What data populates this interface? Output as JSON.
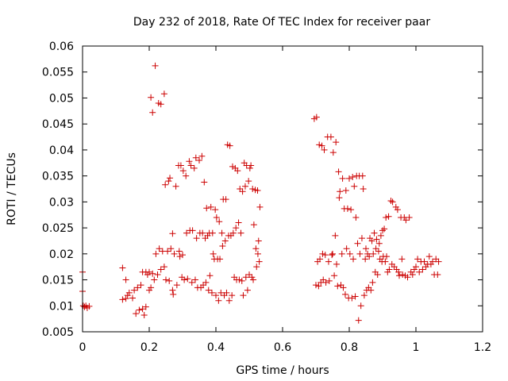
{
  "chart_data": {
    "type": "scatter",
    "title": "Day 232 of 2018, Rate Of TEC Index for receiver paar",
    "xlabel": "GPS time / hours",
    "ylabel": "ROTI / TECUs",
    "xlim": [
      0,
      1.2
    ],
    "ylim": [
      0.005,
      0.06
    ],
    "xticks": [
      "0",
      "0.2",
      "0.4",
      "0.6",
      "0.8",
      "1",
      "1.2"
    ],
    "yticks": [
      "0.005",
      "0.01",
      "0.015",
      "0.02",
      "0.025",
      "0.03",
      "0.035",
      "0.04",
      "0.045",
      "0.05",
      "0.055",
      "0.06"
    ],
    "grid": false,
    "marker": "+",
    "marker_color": "#cc0000",
    "series": [
      {
        "name": "ROTI",
        "points": [
          [
            0.0,
            0.0165
          ],
          [
            0.0,
            0.0128
          ],
          [
            0.002,
            0.01
          ],
          [
            0.006,
            0.0098
          ],
          [
            0.01,
            0.01
          ],
          [
            0.014,
            0.0096
          ],
          [
            0.02,
            0.0099
          ],
          [
            0.12,
            0.0173
          ],
          [
            0.12,
            0.0112
          ],
          [
            0.13,
            0.015
          ],
          [
            0.13,
            0.0114
          ],
          [
            0.135,
            0.012
          ],
          [
            0.14,
            0.0125
          ],
          [
            0.15,
            0.0115
          ],
          [
            0.155,
            0.013
          ],
          [
            0.16,
            0.0085
          ],
          [
            0.165,
            0.0135
          ],
          [
            0.17,
            0.0092
          ],
          [
            0.175,
            0.014
          ],
          [
            0.18,
            0.0094
          ],
          [
            0.18,
            0.0165
          ],
          [
            0.185,
            0.0082
          ],
          [
            0.19,
            0.0165
          ],
          [
            0.19,
            0.0098
          ],
          [
            0.195,
            0.016
          ],
          [
            0.2,
            0.013
          ],
          [
            0.2,
            0.0165
          ],
          [
            0.205,
            0.0135
          ],
          [
            0.205,
            0.0501
          ],
          [
            0.21,
            0.0472
          ],
          [
            0.21,
            0.0162
          ],
          [
            0.215,
            0.015
          ],
          [
            0.218,
            0.0562
          ],
          [
            0.22,
            0.02
          ],
          [
            0.225,
            0.016
          ],
          [
            0.228,
            0.049
          ],
          [
            0.23,
            0.021
          ],
          [
            0.235,
            0.0488
          ],
          [
            0.235,
            0.017
          ],
          [
            0.24,
            0.0205
          ],
          [
            0.245,
            0.0508
          ],
          [
            0.245,
            0.0175
          ],
          [
            0.248,
            0.0333
          ],
          [
            0.25,
            0.015
          ],
          [
            0.255,
            0.0205
          ],
          [
            0.258,
            0.034
          ],
          [
            0.26,
            0.0148
          ],
          [
            0.262,
            0.0346
          ],
          [
            0.265,
            0.021
          ],
          [
            0.27,
            0.013
          ],
          [
            0.27,
            0.0239
          ],
          [
            0.272,
            0.0122
          ],
          [
            0.275,
            0.02
          ],
          [
            0.28,
            0.033
          ],
          [
            0.283,
            0.014
          ],
          [
            0.288,
            0.037
          ],
          [
            0.29,
            0.0205
          ],
          [
            0.292,
            0.0195
          ],
          [
            0.295,
            0.037
          ],
          [
            0.298,
            0.0155
          ],
          [
            0.3,
            0.0198
          ],
          [
            0.302,
            0.036
          ],
          [
            0.305,
            0.015
          ],
          [
            0.31,
            0.035
          ],
          [
            0.312,
            0.024
          ],
          [
            0.315,
            0.0152
          ],
          [
            0.32,
            0.0378
          ],
          [
            0.322,
            0.0245
          ],
          [
            0.325,
            0.037
          ],
          [
            0.328,
            0.0145
          ],
          [
            0.33,
            0.0245
          ],
          [
            0.335,
            0.0365
          ],
          [
            0.338,
            0.015
          ],
          [
            0.34,
            0.0385
          ],
          [
            0.342,
            0.023
          ],
          [
            0.345,
            0.0135
          ],
          [
            0.35,
            0.038
          ],
          [
            0.352,
            0.024
          ],
          [
            0.355,
            0.0135
          ],
          [
            0.358,
            0.0388
          ],
          [
            0.36,
            0.024
          ],
          [
            0.362,
            0.014
          ],
          [
            0.365,
            0.0338
          ],
          [
            0.368,
            0.023
          ],
          [
            0.37,
            0.0145
          ],
          [
            0.372,
            0.0288
          ],
          [
            0.375,
            0.0235
          ],
          [
            0.378,
            0.013
          ],
          [
            0.38,
            0.024
          ],
          [
            0.382,
            0.0158
          ],
          [
            0.385,
            0.029
          ],
          [
            0.388,
            0.0125
          ],
          [
            0.39,
            0.024
          ],
          [
            0.392,
            0.02
          ],
          [
            0.395,
            0.019
          ],
          [
            0.398,
            0.0285
          ],
          [
            0.4,
            0.012
          ],
          [
            0.402,
            0.027
          ],
          [
            0.405,
            0.019
          ],
          [
            0.408,
            0.011
          ],
          [
            0.41,
            0.0262
          ],
          [
            0.412,
            0.019
          ],
          [
            0.415,
            0.0125
          ],
          [
            0.418,
            0.024
          ],
          [
            0.42,
            0.0215
          ],
          [
            0.422,
            0.0305
          ],
          [
            0.425,
            0.012
          ],
          [
            0.428,
            0.0225
          ],
          [
            0.43,
            0.0305
          ],
          [
            0.432,
            0.0125
          ],
          [
            0.435,
            0.041
          ],
          [
            0.438,
            0.0235
          ],
          [
            0.44,
            0.011
          ],
          [
            0.442,
            0.0408
          ],
          [
            0.445,
            0.0235
          ],
          [
            0.448,
            0.012
          ],
          [
            0.45,
            0.0368
          ],
          [
            0.452,
            0.024
          ],
          [
            0.455,
            0.0155
          ],
          [
            0.458,
            0.0365
          ],
          [
            0.46,
            0.025
          ],
          [
            0.462,
            0.015
          ],
          [
            0.465,
            0.036
          ],
          [
            0.468,
            0.026
          ],
          [
            0.47,
            0.015
          ],
          [
            0.472,
            0.0325
          ],
          [
            0.475,
            0.024
          ],
          [
            0.478,
            0.0148
          ],
          [
            0.48,
            0.032
          ],
          [
            0.482,
            0.012
          ],
          [
            0.485,
            0.0375
          ],
          [
            0.488,
            0.033
          ],
          [
            0.49,
            0.0155
          ],
          [
            0.492,
            0.037
          ],
          [
            0.495,
            0.013
          ],
          [
            0.498,
            0.034
          ],
          [
            0.5,
            0.016
          ],
          [
            0.502,
            0.0365
          ],
          [
            0.505,
            0.037
          ],
          [
            0.508,
            0.0155
          ],
          [
            0.51,
            0.0325
          ],
          [
            0.512,
            0.015
          ],
          [
            0.514,
            0.0256
          ],
          [
            0.518,
            0.0323
          ],
          [
            0.52,
            0.021
          ],
          [
            0.522,
            0.0175
          ],
          [
            0.525,
            0.0322
          ],
          [
            0.526,
            0.02
          ],
          [
            0.528,
            0.0225
          ],
          [
            0.53,
            0.0185
          ],
          [
            0.532,
            0.029
          ],
          [
            0.695,
            0.046
          ],
          [
            0.7,
            0.014
          ],
          [
            0.702,
            0.0463
          ],
          [
            0.705,
            0.0185
          ],
          [
            0.708,
            0.0138
          ],
          [
            0.71,
            0.041
          ],
          [
            0.712,
            0.019
          ],
          [
            0.715,
            0.0145
          ],
          [
            0.718,
            0.0408
          ],
          [
            0.72,
            0.02
          ],
          [
            0.722,
            0.015
          ],
          [
            0.725,
            0.04
          ],
          [
            0.728,
            0.0198
          ],
          [
            0.73,
            0.0145
          ],
          [
            0.735,
            0.0425
          ],
          [
            0.738,
            0.0185
          ],
          [
            0.74,
            0.0148
          ],
          [
            0.745,
            0.0425
          ],
          [
            0.748,
            0.0198
          ],
          [
            0.75,
            0.02
          ],
          [
            0.752,
            0.0395
          ],
          [
            0.755,
            0.0158
          ],
          [
            0.758,
            0.0235
          ],
          [
            0.76,
            0.0415
          ],
          [
            0.762,
            0.018
          ],
          [
            0.765,
            0.0138
          ],
          [
            0.768,
            0.0358
          ],
          [
            0.77,
            0.0308
          ],
          [
            0.772,
            0.032
          ],
          [
            0.775,
            0.014
          ],
          [
            0.778,
            0.02
          ],
          [
            0.78,
            0.0345
          ],
          [
            0.782,
            0.0135
          ],
          [
            0.785,
            0.0287
          ],
          [
            0.788,
            0.0122
          ],
          [
            0.79,
            0.0322
          ],
          [
            0.792,
            0.021
          ],
          [
            0.795,
            0.0287
          ],
          [
            0.798,
            0.0115
          ],
          [
            0.8,
            0.0345
          ],
          [
            0.802,
            0.02
          ],
          [
            0.805,
            0.0285
          ],
          [
            0.808,
            0.0115
          ],
          [
            0.81,
            0.0348
          ],
          [
            0.812,
            0.019
          ],
          [
            0.815,
            0.033
          ],
          [
            0.818,
            0.0118
          ],
          [
            0.82,
            0.027
          ],
          [
            0.822,
            0.035
          ],
          [
            0.825,
            0.022
          ],
          [
            0.828,
            0.0072
          ],
          [
            0.83,
            0.035
          ],
          [
            0.832,
            0.02
          ],
          [
            0.835,
            0.01
          ],
          [
            0.838,
            0.023
          ],
          [
            0.84,
            0.035
          ],
          [
            0.842,
            0.0325
          ],
          [
            0.845,
            0.012
          ],
          [
            0.848,
            0.019
          ],
          [
            0.85,
            0.021
          ],
          [
            0.852,
            0.013
          ],
          [
            0.855,
            0.02
          ],
          [
            0.858,
            0.0135
          ],
          [
            0.86,
            0.0195
          ],
          [
            0.862,
            0.023
          ],
          [
            0.865,
            0.013
          ],
          [
            0.868,
            0.0225
          ],
          [
            0.87,
            0.0145
          ],
          [
            0.872,
            0.02
          ],
          [
            0.875,
            0.024
          ],
          [
            0.878,
            0.0165
          ],
          [
            0.88,
            0.021
          ],
          [
            0.882,
            0.0228
          ],
          [
            0.885,
            0.016
          ],
          [
            0.888,
            0.0205
          ],
          [
            0.89,
            0.022
          ],
          [
            0.892,
            0.019
          ],
          [
            0.895,
            0.0235
          ],
          [
            0.898,
            0.0185
          ],
          [
            0.9,
            0.0245
          ],
          [
            0.902,
            0.0195
          ],
          [
            0.905,
            0.0248
          ],
          [
            0.908,
            0.0185
          ],
          [
            0.91,
            0.027
          ],
          [
            0.912,
            0.0195
          ],
          [
            0.915,
            0.0165
          ],
          [
            0.918,
            0.0272
          ],
          [
            0.92,
            0.017
          ],
          [
            0.925,
            0.0302
          ],
          [
            0.928,
            0.018
          ],
          [
            0.93,
            0.03
          ],
          [
            0.935,
            0.0175
          ],
          [
            0.94,
            0.029
          ],
          [
            0.942,
            0.017
          ],
          [
            0.945,
            0.0285
          ],
          [
            0.948,
            0.0165
          ],
          [
            0.95,
            0.0158
          ],
          [
            0.955,
            0.027
          ],
          [
            0.958,
            0.019
          ],
          [
            0.96,
            0.016
          ],
          [
            0.965,
            0.027
          ],
          [
            0.968,
            0.0158
          ],
          [
            0.97,
            0.0265
          ],
          [
            0.975,
            0.0155
          ],
          [
            0.98,
            0.027
          ],
          [
            0.985,
            0.0165
          ],
          [
            0.99,
            0.016
          ],
          [
            0.995,
            0.017
          ],
          [
            1.0,
            0.0175
          ],
          [
            1.005,
            0.019
          ],
          [
            1.01,
            0.0165
          ],
          [
            1.015,
            0.0185
          ],
          [
            1.02,
            0.017
          ],
          [
            1.025,
            0.0185
          ],
          [
            1.03,
            0.0175
          ],
          [
            1.035,
            0.018
          ],
          [
            1.04,
            0.0195
          ],
          [
            1.045,
            0.018
          ],
          [
            1.05,
            0.0185
          ],
          [
            1.055,
            0.016
          ],
          [
            1.06,
            0.019
          ],
          [
            1.065,
            0.016
          ],
          [
            1.068,
            0.0185
          ]
        ]
      }
    ]
  }
}
